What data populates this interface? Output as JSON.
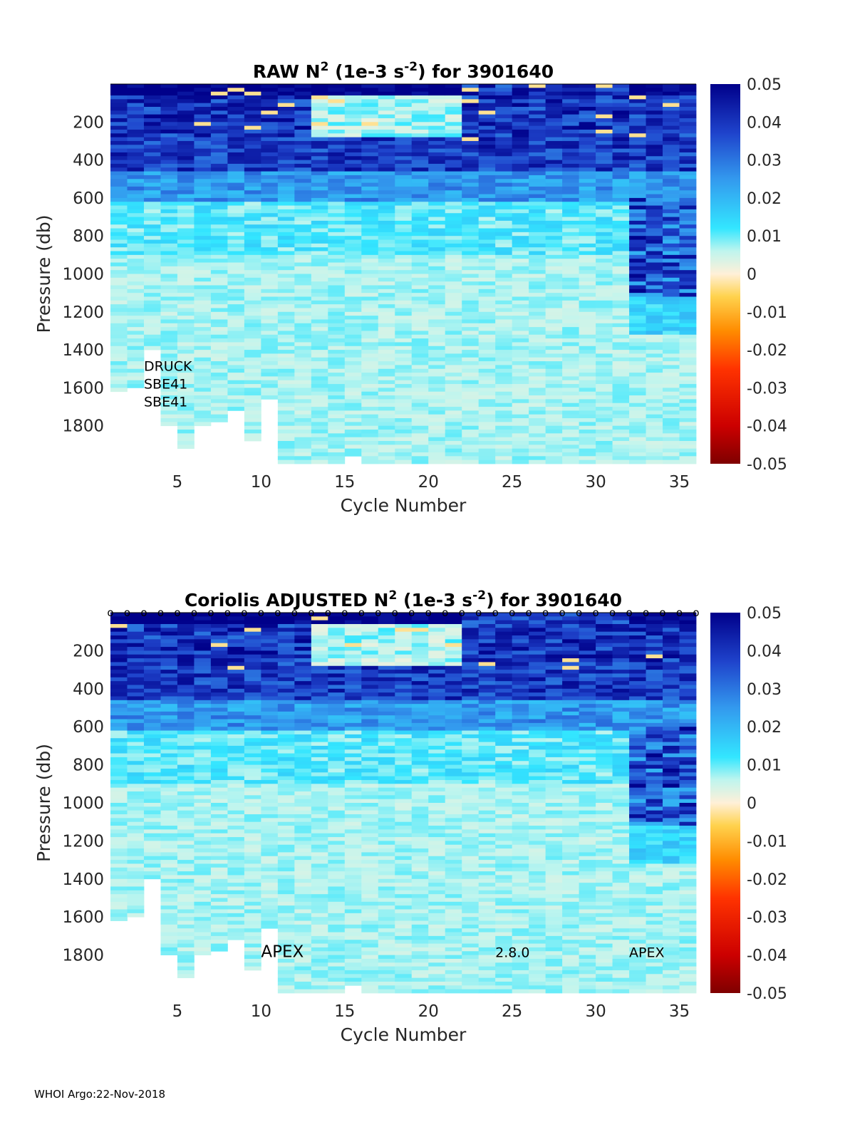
{
  "footer": "WHOI Argo:22-Nov-2018",
  "chart_data": [
    {
      "type": "heatmap",
      "title_main": "RAW N",
      "title_sup": "2",
      "title_mid": " (1e-3 s",
      "title_sup2": "-2",
      "title_end": ") for 3901640",
      "xlabel": "Cycle Number",
      "ylabel": "Pressure (db)",
      "xlim": [
        1,
        36
      ],
      "ylim": [
        0,
        2000
      ],
      "y_reversed": true,
      "xticks": [
        5,
        10,
        15,
        20,
        25,
        30,
        35
      ],
      "yticks": [
        200,
        400,
        600,
        800,
        1000,
        1200,
        1400,
        1600,
        1800
      ],
      "colorbar": {
        "range": [
          -0.05,
          0.05
        ],
        "ticks": [
          "0.05",
          "0.04",
          "0.03",
          "0.02",
          "0.01",
          "0",
          "-0.01",
          "-0.02",
          "-0.03",
          "-0.04",
          "-0.05"
        ]
      },
      "annotations": [
        "DRUCK",
        "SBE41",
        "SBE41"
      ],
      "profile_max_pressure": [
        1620,
        1600,
        1400,
        1800,
        1920,
        1800,
        1780,
        1720,
        1880,
        1650,
        2000,
        2000,
        2000,
        2000,
        1960,
        2000,
        2000,
        2000,
        2000,
        2000,
        2000,
        2000,
        2000,
        2000,
        2000,
        2000,
        2000,
        2000,
        2000,
        2000,
        2000,
        2000,
        2000,
        2000,
        2000
      ],
      "deep_n2_feature": {
        "cycles": [
          32,
          35
        ],
        "pressure_range": [
          600,
          1300
        ],
        "n2_max": 0.05
      }
    },
    {
      "type": "heatmap",
      "title_main": "Coriolis  ADJUSTED N",
      "title_sup": "2",
      "title_mid": " (1e-3 s",
      "title_sup2": "-2",
      "title_end": ") for 3901640",
      "xlabel": "Cycle Number",
      "ylabel": "Pressure (db)",
      "xlim": [
        1,
        36
      ],
      "ylim": [
        0,
        2000
      ],
      "y_reversed": true,
      "xticks": [
        5,
        10,
        15,
        20,
        25,
        30,
        35
      ],
      "yticks": [
        200,
        400,
        600,
        800,
        1000,
        1200,
        1400,
        1600,
        1800
      ],
      "colorbar": {
        "range": [
          -0.05,
          0.05
        ],
        "ticks": [
          "0.05",
          "0.04",
          "0.03",
          "0.02",
          "0.01",
          "0",
          "-0.01",
          "-0.02",
          "-0.03",
          "-0.04",
          "-0.05"
        ]
      },
      "qc_marker": "o",
      "annotations": [
        {
          "text": "APEX",
          "cycle": 10.0,
          "pressure": 1810
        },
        {
          "text": "2.8.0",
          "cycle": 24.0,
          "pressure": 1810
        },
        {
          "text": "APEX",
          "cycle": 32.0,
          "pressure": 1810
        }
      ],
      "profile_max_pressure": [
        1620,
        1600,
        1400,
        1800,
        1920,
        1800,
        1780,
        1720,
        1880,
        1650,
        2000,
        2000,
        2000,
        2000,
        1960,
        2000,
        2000,
        2000,
        2000,
        2000,
        2000,
        2000,
        2000,
        2000,
        2000,
        2000,
        2000,
        2000,
        2000,
        2000,
        2000,
        2000,
        2000,
        2000,
        2000
      ],
      "deep_n2_feature": {
        "cycles": [
          32,
          35
        ],
        "pressure_range": [
          600,
          1300
        ],
        "n2_max": 0.05
      }
    }
  ]
}
